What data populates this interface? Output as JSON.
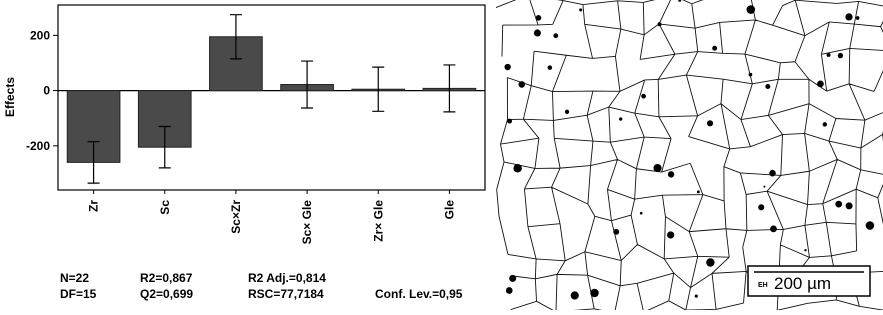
{
  "chart_data": {
    "type": "bar",
    "y_label": "Effects",
    "categories": [
      "Zr",
      "Sc",
      "Sc×Zr",
      "Sc× Gle",
      "Zr× Gle",
      "Gle"
    ],
    "values": [
      -260,
      -205,
      195,
      22,
      5,
      8
    ],
    "errors": [
      75,
      75,
      80,
      85,
      80,
      85
    ],
    "color": "#4a4a4a",
    "ylim": [
      -360,
      310
    ],
    "yticks": [
      -200,
      0,
      200
    ]
  },
  "stats": [
    [
      "N=22",
      "DF=15"
    ],
    [
      "R2=0,867",
      "Q2=0,699"
    ],
    [
      "R2 Adj.=0,814",
      "RSC=77,7184"
    ],
    [
      "",
      "Conf. Lev.=0,95"
    ]
  ],
  "micrograph": {
    "scale_label": "200 µm",
    "scale_tag": "EH"
  }
}
